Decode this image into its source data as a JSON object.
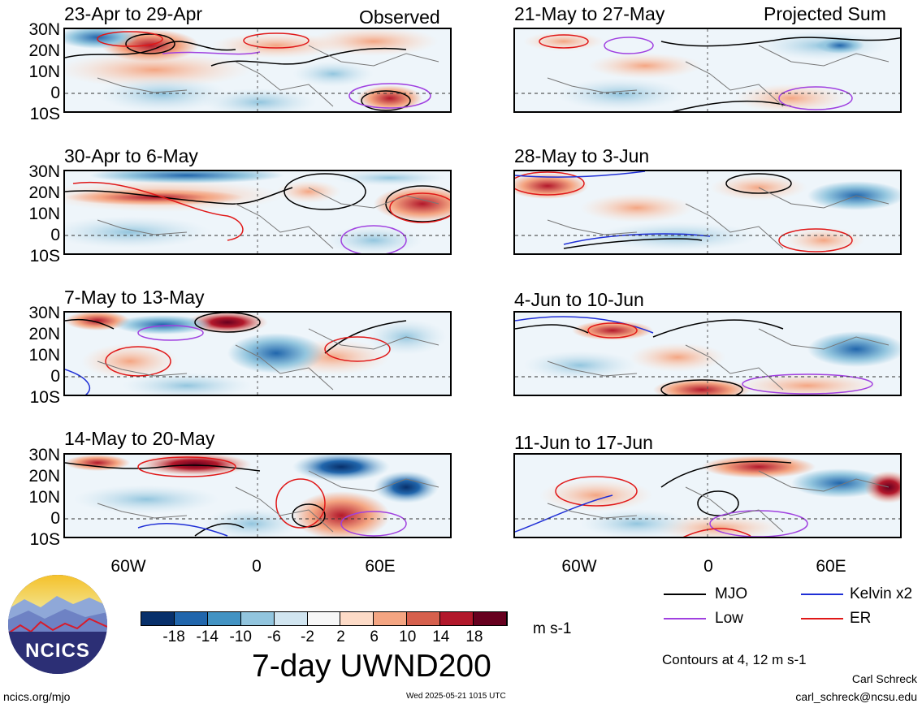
{
  "corner_labels": {
    "left": "Observed",
    "right": "Projected Sum"
  },
  "panels": [
    {
      "title": "23-Apr to 29-Apr"
    },
    {
      "title": "30-Apr to 6-May"
    },
    {
      "title": "7-May to 13-May"
    },
    {
      "title": "14-May to 20-May"
    },
    {
      "title": "21-May to 27-May"
    },
    {
      "title": "28-May to 3-Jun"
    },
    {
      "title": "4-Jun to 10-Jun"
    },
    {
      "title": "11-Jun to 17-Jun"
    }
  ],
  "lat_labels": [
    "30N",
    "20N",
    "10N",
    "0",
    "10S"
  ],
  "lon_labels": [
    "60W",
    "0",
    "60E"
  ],
  "colorbar": {
    "labels": [
      "-18",
      "-14",
      "-10",
      "-6",
      "-2",
      "2",
      "6",
      "10",
      "14",
      "18"
    ],
    "unit": "m s-1",
    "colors": [
      "#08306b",
      "#2166ac",
      "#4393c3",
      "#92c5de",
      "#d1e5f0",
      "#f7f7f7",
      "#fddbc7",
      "#f4a582",
      "#d6604d",
      "#b2182b",
      "#67001f"
    ]
  },
  "main_title": "7-day UWND200",
  "legend": {
    "items": [
      {
        "label": "MJO",
        "color": "#000000"
      },
      {
        "label": "Kelvin x2",
        "color": "#1f2fd6"
      },
      {
        "label": "Low",
        "color": "#a040e0"
      },
      {
        "label": "ER",
        "color": "#e01818"
      }
    ],
    "note": "Contours at 4, 12 m s-1"
  },
  "logo_text": "NCICS",
  "footer": {
    "left": "ncics.org/mjo",
    "center": "Wed 2025-05-21 1015 UTC",
    "author": "Carl Schreck",
    "email": "carl_schreck@ncsu.edu"
  }
}
